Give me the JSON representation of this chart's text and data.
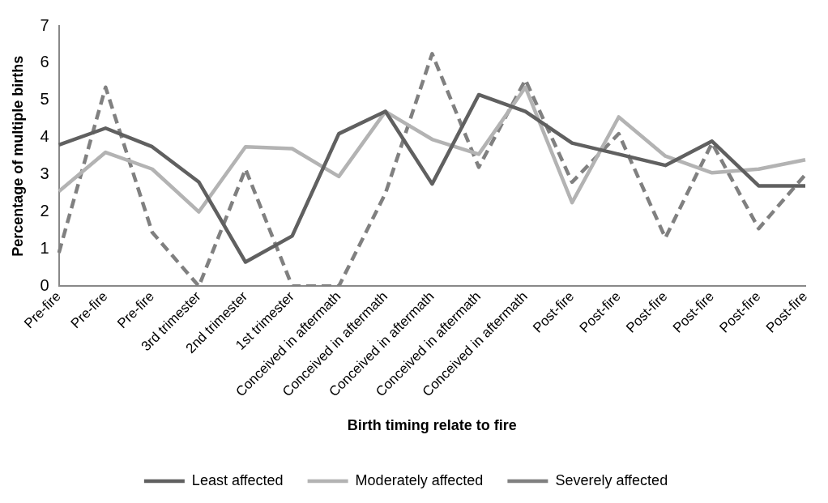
{
  "chart_data": {
    "type": "line",
    "xlabel": "Birth timing relate to fire",
    "ylabel": "Percentage of multiple births",
    "categories": [
      "Pre-fire",
      "Pre-fire",
      "Pre-fire",
      "3rd trimester",
      "2nd trimester",
      "1st trimester",
      "Conceived in aftermath",
      "Conceived in aftermath",
      "Conceived in aftermath",
      "Conceived in aftermath",
      "Conceived in aftermath",
      "Post-fire",
      "Post-fire",
      "Post-fire",
      "Post-fire",
      "Post-fire",
      "Post-fire"
    ],
    "series": [
      {
        "name": "Least affected",
        "color": "#606060",
        "line_style": "solid",
        "values": [
          3.8,
          4.25,
          3.75,
          2.8,
          0.65,
          1.35,
          4.1,
          4.7,
          2.75,
          5.15,
          4.7,
          3.85,
          3.55,
          3.25,
          3.9,
          2.7,
          2.7
        ]
      },
      {
        "name": "Moderately affected",
        "color": "#b3b3b3",
        "line_style": "solid",
        "values": [
          2.55,
          3.6,
          3.15,
          2.0,
          3.75,
          3.7,
          2.95,
          4.7,
          3.95,
          3.55,
          5.35,
          2.25,
          4.55,
          3.5,
          3.05,
          3.15,
          3.4
        ]
      },
      {
        "name": "Severely affected",
        "color": "#808080",
        "line_style": "dashed",
        "values": [
          0.9,
          5.35,
          1.45,
          0,
          3.15,
          0,
          0,
          2.5,
          6.25,
          3.2,
          5.55,
          2.8,
          4.1,
          1.3,
          3.85,
          1.55,
          3.0
        ]
      }
    ],
    "ylim": [
      0,
      7
    ],
    "yticks": [
      0,
      1,
      2,
      3,
      4,
      5,
      6,
      7
    ],
    "grid": false,
    "legend": "bottom",
    "marker": "none"
  }
}
